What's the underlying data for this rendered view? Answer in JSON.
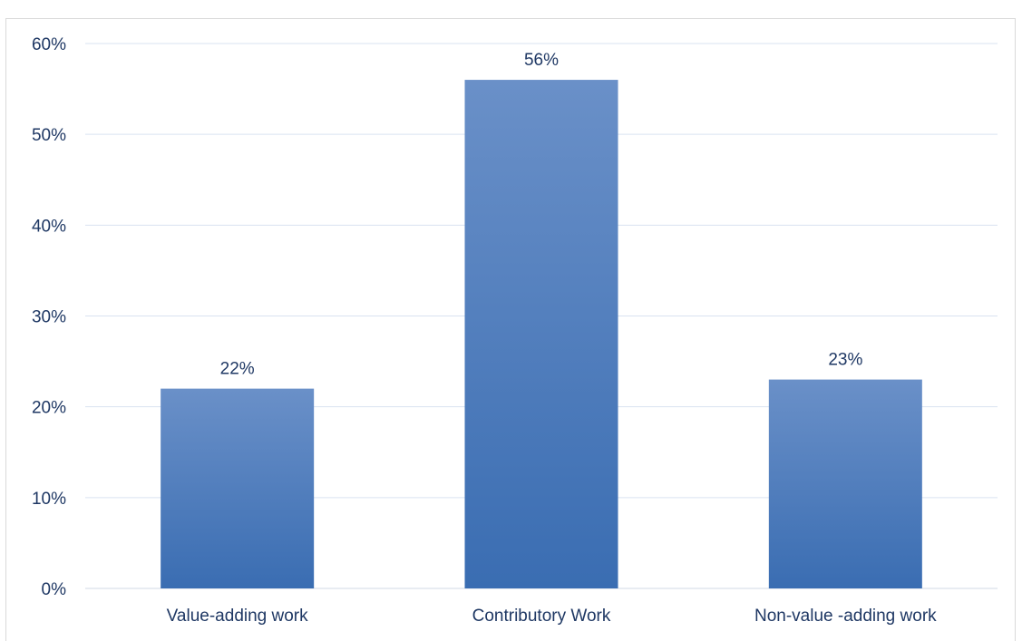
{
  "chart_data": {
    "type": "bar",
    "categories": [
      "Value-adding work",
      "Contributory Work",
      "Non-value -adding work"
    ],
    "values": [
      22,
      56,
      23
    ],
    "data_labels": [
      "22%",
      "56%",
      "23%"
    ],
    "y_tick_labels": [
      "0%",
      "10%",
      "20%",
      "30%",
      "40%",
      "50%",
      "60%"
    ],
    "y_ticks": [
      0,
      10,
      20,
      30,
      40,
      50,
      60
    ],
    "ylim": [
      0,
      60
    ],
    "grid": true,
    "legend": "none",
    "title": "",
    "xlabel": "",
    "ylabel": "",
    "colors": {
      "bar_top": "#6a90c8",
      "bar_bottom": "#3a6db2",
      "grid": "#d9e3f0",
      "axis": "#d0d8e4",
      "text": "#1f3864"
    }
  }
}
